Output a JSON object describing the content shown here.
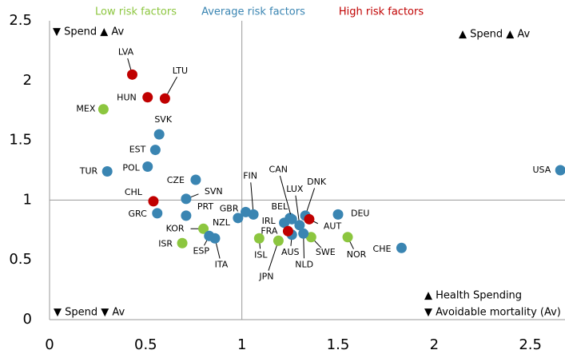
{
  "chart_data": {
    "type": "scatter",
    "xlim": [
      0,
      2.68
    ],
    "ylim": [
      0,
      2.5
    ],
    "xticks": [
      0,
      0.5,
      1,
      1.5,
      2,
      2.5
    ],
    "yticks": [
      0,
      0.5,
      1,
      1.5,
      2,
      2.5
    ],
    "reference_x": 1,
    "reference_y": 1,
    "series": [
      {
        "name": "Low risk factors",
        "color": "#8cc63f",
        "labels": [
          "MEX",
          "KOR",
          "ISR",
          "ISL",
          "JPN",
          "SWE",
          "NOR"
        ],
        "x": [
          0.28,
          0.8,
          0.69,
          1.09,
          1.19,
          1.36,
          1.55
        ],
        "values": [
          1.76,
          0.76,
          0.64,
          0.68,
          0.66,
          0.69,
          0.69
        ]
      },
      {
        "name": "Average risk factors",
        "color": "#3a85b2",
        "labels": [
          "SVK",
          "EST",
          "POL",
          "TUR",
          "CZE",
          "SVN",
          "GRC",
          "PRT",
          "ESP",
          "ITA",
          "NZL",
          "GBR",
          "FIN",
          "BEL",
          "IRL",
          "CAN",
          "AUS",
          "LUX",
          "NLD",
          "DNK",
          "DEU",
          "CHE",
          "USA"
        ],
        "x": [
          0.57,
          0.55,
          0.51,
          0.3,
          0.76,
          0.71,
          0.56,
          0.71,
          0.83,
          0.86,
          0.98,
          1.02,
          1.06,
          1.25,
          1.22,
          1.26,
          1.26,
          1.3,
          1.32,
          1.33,
          1.5,
          1.83,
          2.656
        ],
        "values": [
          1.55,
          1.42,
          1.28,
          1.24,
          1.17,
          1.01,
          0.89,
          0.87,
          0.7,
          0.68,
          0.85,
          0.9,
          0.88,
          0.85,
          0.81,
          0.84,
          0.71,
          0.79,
          0.72,
          0.87,
          0.88,
          0.6,
          1.25
        ]
      },
      {
        "name": "High risk factors",
        "color": "#c00000",
        "labels": [
          "LVA",
          "HUN",
          "LTU",
          "CHL",
          "FRA",
          "AUT"
        ],
        "x": [
          0.43,
          0.51,
          0.6,
          0.54,
          1.24,
          1.35
        ],
        "values": [
          2.05,
          1.86,
          1.85,
          0.99,
          0.74,
          0.84
        ]
      }
    ],
    "annotations": [
      "▼ Spend  ▲ Av",
      "▲ Spend  ▲ Av",
      "▼ Spend  ▼ Av",
      "▲ Health Spending",
      "▼ Avoidable mortality (Av)"
    ]
  }
}
